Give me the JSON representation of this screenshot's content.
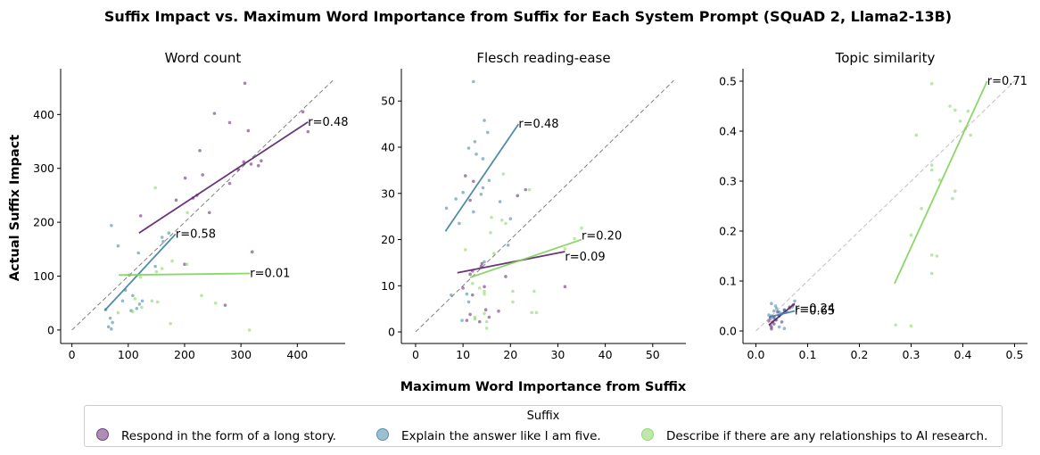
{
  "figure_title": "Suffix Impact vs. Maximum Word Importance from Suffix for Each System Prompt (SQuAD 2, Llama2-13B)",
  "xlabel": "Maximum Word Importance from Suffix",
  "ylabel": "Actual Suffix Impact",
  "legend": {
    "title": "Suffix",
    "entries": [
      {
        "label": "Respond in the form of a long story.",
        "color": "#5b1f6b"
      },
      {
        "label": "Explain the answer like I am five.",
        "color": "#3b80a0"
      },
      {
        "label": "Describe if there are any relationships to AI research.",
        "color": "#7fd35a"
      }
    ]
  },
  "chart_data": [
    {
      "type": "scatter",
      "title": "Word count",
      "xlim": [
        -20,
        485
      ],
      "ylim": [
        -25,
        485
      ],
      "xticks": [
        0,
        100,
        200,
        300,
        400
      ],
      "yticks": [
        0,
        100,
        200,
        300,
        400
      ],
      "diagonal": true,
      "series": [
        {
          "name": "Respond in the form of a long story.",
          "color": "#5b1f6b",
          "points": [
            [
              307,
              458
            ],
            [
              253,
              402
            ],
            [
              410,
              405
            ],
            [
              280,
              385
            ],
            [
              313,
              370
            ],
            [
              419,
              368
            ],
            [
              227,
              333
            ],
            [
              336,
              314
            ],
            [
              331,
              305
            ],
            [
              305,
              312
            ],
            [
              318,
              308
            ],
            [
              295,
              298
            ],
            [
              232,
              288
            ],
            [
              201,
              282
            ],
            [
              280,
              272
            ],
            [
              215,
              245
            ],
            [
              222,
              250
            ],
            [
              185,
              241
            ],
            [
              122,
              212
            ],
            [
              244,
              218
            ],
            [
              200,
              122
            ],
            [
              320,
              145
            ],
            [
              272,
              46
            ]
          ],
          "fit": {
            "x": [
              119,
              419
            ],
            "y": [
              180,
              386
            ],
            "r": "r=0.48"
          }
        },
        {
          "name": "Explain the answer like I am five.",
          "color": "#3b80a0",
          "points": [
            [
              70,
              194
            ],
            [
              82,
              156
            ],
            [
              160,
              172
            ],
            [
              162,
              164
            ],
            [
              172,
              180
            ],
            [
              118,
              143
            ],
            [
              148,
              118
            ],
            [
              102,
              102
            ],
            [
              95,
              74
            ],
            [
              108,
              64
            ],
            [
              90,
              54
            ],
            [
              120,
              48
            ],
            [
              125,
              54
            ],
            [
              115,
              40
            ],
            [
              105,
              36
            ],
            [
              60,
              38
            ],
            [
              68,
              22
            ],
            [
              72,
              14
            ],
            [
              70,
              2
            ],
            [
              65,
              6
            ]
          ],
          "fit": {
            "x": [
              58,
              184
            ],
            "y": [
              36,
              178
            ],
            "r": "r=0.58"
          }
        },
        {
          "name": "Describe if there are any relationships to AI research.",
          "color": "#7fd35a",
          "points": [
            [
              148,
              264
            ],
            [
              205,
              218
            ],
            [
              178,
              128
            ],
            [
              204,
              122
            ],
            [
              160,
              114
            ],
            [
              150,
              108
            ],
            [
              122,
              98
            ],
            [
              142,
              54
            ],
            [
              152,
              52
            ],
            [
              112,
              58
            ],
            [
              82,
              32
            ],
            [
              108,
              34
            ],
            [
              124,
              42
            ],
            [
              175,
              12
            ],
            [
              230,
              64
            ],
            [
              255,
              50
            ],
            [
              315,
              0
            ]
          ],
          "fit": {
            "x": [
              83,
              316
            ],
            "y": [
              102,
              105
            ],
            "r": "r=0.01"
          }
        }
      ]
    },
    {
      "type": "scatter",
      "title": "Flesch reading-ease",
      "xlim": [
        -3,
        57
      ],
      "ylim": [
        -2.5,
        57
      ],
      "xticks": [
        0,
        10,
        20,
        30,
        40,
        50
      ],
      "yticks": [
        0,
        10,
        20,
        30,
        40,
        50
      ],
      "diagonal": true,
      "series": [
        {
          "name": "Respond in the form of a long story.",
          "color": "#5b1f6b",
          "points": [
            [
              10.5,
              33.8
            ],
            [
              12.2,
              32.6
            ],
            [
              11.5,
              28.5
            ],
            [
              21.5,
              29.5
            ],
            [
              23.2,
              30.8
            ],
            [
              14.0,
              14.8
            ],
            [
              13.8,
              14.2
            ],
            [
              11.5,
              12.5
            ],
            [
              12.0,
              13.2
            ],
            [
              14.5,
              9.8
            ],
            [
              12.0,
              8.0
            ],
            [
              14.8,
              4.8
            ],
            [
              11.5,
              3.8
            ],
            [
              10.8,
              2.5
            ],
            [
              13.5,
              2.2
            ],
            [
              31.5,
              9.8
            ],
            [
              17.5,
              4.5
            ],
            [
              19.0,
              12.0
            ],
            [
              15.5,
              3.2
            ],
            [
              10.0,
              9.5
            ]
          ],
          "fit": {
            "x": [
              8.8,
              31.5
            ],
            "y": [
              12.8,
              17.4
            ],
            "r": "r=0.09"
          }
        },
        {
          "name": "Explain the answer like I am five.",
          "color": "#3b80a0",
          "points": [
            [
              12.2,
              54.2
            ],
            [
              14.5,
              45.8
            ],
            [
              15.2,
              43.2
            ],
            [
              12.5,
              41.2
            ],
            [
              12.8,
              38.5
            ],
            [
              14.2,
              37.5
            ],
            [
              11.2,
              39.8
            ],
            [
              6.5,
              26.8
            ],
            [
              8.5,
              28.8
            ],
            [
              10.0,
              30.2
            ],
            [
              13.8,
              29.8
            ],
            [
              9.2,
              23.5
            ],
            [
              12.2,
              26.0
            ],
            [
              14.2,
              31.2
            ],
            [
              15.5,
              32.8
            ],
            [
              17.8,
              28.2
            ],
            [
              20.0,
              24.5
            ],
            [
              19.5,
              18.8
            ],
            [
              14.5,
              15.2
            ],
            [
              11.2,
              6.5
            ],
            [
              10.8,
              8.2
            ],
            [
              7.5,
              8.0
            ],
            [
              9.8,
              2.5
            ]
          ],
          "fit": {
            "x": [
              6.3,
              21.7
            ],
            "y": [
              21.8,
              45.0
            ],
            "r": "r=0.48"
          }
        },
        {
          "name": "Describe if there are any relationships to AI research.",
          "color": "#7fd35a",
          "points": [
            [
              18.5,
              34.2
            ],
            [
              24.0,
              30.8
            ],
            [
              16.0,
              24.8
            ],
            [
              18.2,
              24.2
            ],
            [
              19.0,
              23.5
            ],
            [
              15.8,
              21.5
            ],
            [
              10.5,
              17.8
            ],
            [
              16.5,
              17.0
            ],
            [
              35.0,
              22.5
            ],
            [
              33.5,
              20.2
            ],
            [
              31.5,
              18.0
            ],
            [
              12.0,
              10.5
            ],
            [
              13.5,
              9.5
            ],
            [
              14.5,
              8.8
            ],
            [
              14.5,
              8.2
            ],
            [
              20.5,
              8.8
            ],
            [
              25.0,
              8.8
            ],
            [
              12.5,
              3.2
            ],
            [
              15.0,
              2.2
            ],
            [
              15.0,
              0.8
            ],
            [
              24.5,
              4.2
            ],
            [
              25.5,
              4.2
            ],
            [
              20.5,
              6.5
            ],
            [
              14.5,
              4.0
            ],
            [
              12.5,
              2.8
            ]
          ],
          "fit": {
            "x": [
              11.5,
              35.0
            ],
            "y": [
              11.8,
              20.0
            ],
            "r": "r=0.20"
          }
        }
      ]
    },
    {
      "type": "scatter",
      "title": "Topic similarity",
      "xlim": [
        -0.025,
        0.525
      ],
      "ylim": [
        -0.025,
        0.525
      ],
      "xticks": [
        0.0,
        0.1,
        0.2,
        0.3,
        0.4,
        0.5
      ],
      "yticks": [
        0.0,
        0.1,
        0.2,
        0.3,
        0.4,
        0.5
      ],
      "diagonal": true,
      "series": [
        {
          "name": "Respond in the form of a long story.",
          "color": "#5b1f6b",
          "points": [
            [
              0.025,
              0.02
            ],
            [
              0.028,
              0.012
            ],
            [
              0.03,
              0.008
            ],
            [
              0.032,
              0.018
            ],
            [
              0.035,
              0.028
            ],
            [
              0.03,
              0.004
            ],
            [
              0.038,
              0.022
            ],
            [
              0.045,
              0.03
            ],
            [
              0.042,
              0.038
            ],
            [
              0.055,
              0.042
            ],
            [
              0.065,
              0.048
            ],
            [
              0.072,
              0.052
            ],
            [
              0.028,
              0.025
            ],
            [
              0.05,
              0.018
            ],
            [
              0.035,
              0.014
            ]
          ],
          "fit": {
            "x": [
              0.025,
              0.075
            ],
            "y": [
              0.012,
              0.055
            ],
            "r": "r=0.24"
          }
        },
        {
          "name": "Explain the answer like I am five.",
          "color": "#3b80a0",
          "points": [
            [
              0.03,
              0.03
            ],
            [
              0.035,
              0.04
            ],
            [
              0.04,
              0.045
            ],
            [
              0.045,
              0.038
            ],
            [
              0.05,
              0.035
            ],
            [
              0.055,
              0.042
            ],
            [
              0.06,
              0.038
            ],
            [
              0.065,
              0.045
            ],
            [
              0.07,
              0.048
            ],
            [
              0.035,
              0.025
            ],
            [
              0.04,
              0.022
            ],
            [
              0.03,
              0.055
            ],
            [
              0.045,
              0.008
            ],
            [
              0.055,
              0.005
            ],
            [
              0.075,
              0.06
            ],
            [
              0.025,
              0.032
            ],
            [
              0.038,
              0.05
            ]
          ],
          "fit": {
            "x": [
              0.025,
              0.075
            ],
            "y": [
              0.028,
              0.04
            ],
            "r": "r=0.65"
          }
        },
        {
          "name": "Describe if there are any relationships to AI research.",
          "color": "#7fd35a",
          "points": [
            [
              0.34,
              0.495
            ],
            [
              0.375,
              0.45
            ],
            [
              0.385,
              0.442
            ],
            [
              0.41,
              0.44
            ],
            [
              0.395,
              0.42
            ],
            [
              0.405,
              0.405
            ],
            [
              0.415,
              0.392
            ],
            [
              0.31,
              0.392
            ],
            [
              0.34,
              0.332
            ],
            [
              0.34,
              0.322
            ],
            [
              0.355,
              0.302
            ],
            [
              0.385,
              0.28
            ],
            [
              0.38,
              0.265
            ],
            [
              0.32,
              0.245
            ],
            [
              0.3,
              0.192
            ],
            [
              0.34,
              0.152
            ],
            [
              0.35,
              0.15
            ],
            [
              0.34,
              0.115
            ],
            [
              0.27,
              0.012
            ],
            [
              0.3,
              0.01
            ]
          ],
          "fit": {
            "x": [
              0.268,
              0.447
            ],
            "y": [
              0.095,
              0.5
            ],
            "r": "r=0.71"
          }
        }
      ]
    }
  ]
}
